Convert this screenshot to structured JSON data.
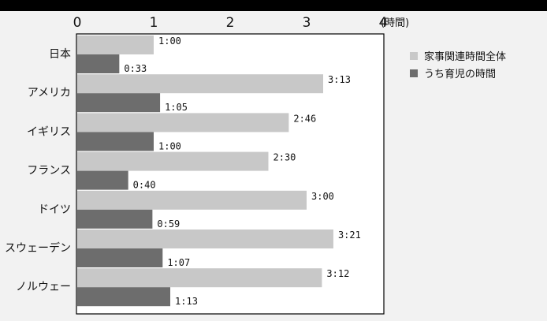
{
  "chart_data": {
    "type": "bar",
    "orientation": "horizontal",
    "categories": [
      "日本",
      "アメリカ",
      "イギリス",
      "フランス",
      "ドイツ",
      "スウェーデン",
      "ノルウェー"
    ],
    "series": [
      {
        "name": "家事関連時間全体",
        "color": "#c8c8c8",
        "values": [
          1.0,
          3.2167,
          2.7667,
          2.5,
          3.0,
          3.35,
          3.2
        ],
        "labels": [
          "1:00",
          "3:13",
          "2:46",
          "2:30",
          "3:00",
          "3:21",
          "3:12"
        ]
      },
      {
        "name": "うち育児の時間",
        "color": "#6d6d6d",
        "values": [
          0.55,
          1.0833,
          1.0,
          0.6667,
          0.9833,
          1.1167,
          1.2167
        ],
        "labels": [
          "0:33",
          "1:05",
          "1:00",
          "0:40",
          "0:59",
          "1:07",
          "1:13"
        ]
      }
    ],
    "xlim": [
      0,
      4
    ],
    "xticks": [
      "0",
      "1",
      "2",
      "3",
      "4"
    ],
    "xunit": "(時間)",
    "legend_position": "right",
    "grid": false
  }
}
